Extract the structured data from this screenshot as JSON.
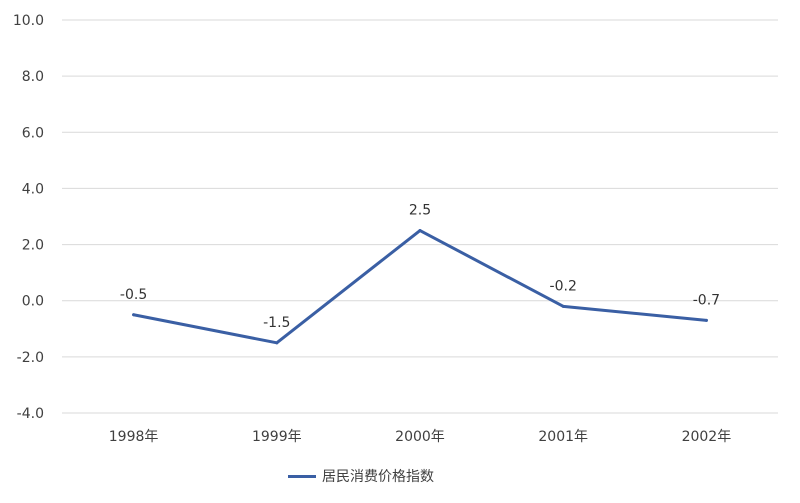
{
  "chart_data": {
    "type": "line",
    "categories": [
      "1998年",
      "1999年",
      "2000年",
      "2001年",
      "2002年"
    ],
    "series": [
      {
        "name": "居民消费价格指数",
        "values": [
          -0.5,
          -1.5,
          2.5,
          -0.2,
          -0.7
        ],
        "color": "#3a5fa4",
        "data_labels": [
          "-0.5",
          "-1.5",
          "2.5",
          "-0.2",
          "-0.7"
        ]
      }
    ],
    "ylim": [
      -4.0,
      10.0
    ],
    "yticks": [
      "-4.0",
      "-2.0",
      "0.0",
      "2.0",
      "4.0",
      "6.0",
      "8.0",
      "10.0"
    ],
    "grid": true,
    "legend_position": "bottom",
    "colors": {
      "grid": "#d9d9d9",
      "text": "#404040"
    }
  }
}
